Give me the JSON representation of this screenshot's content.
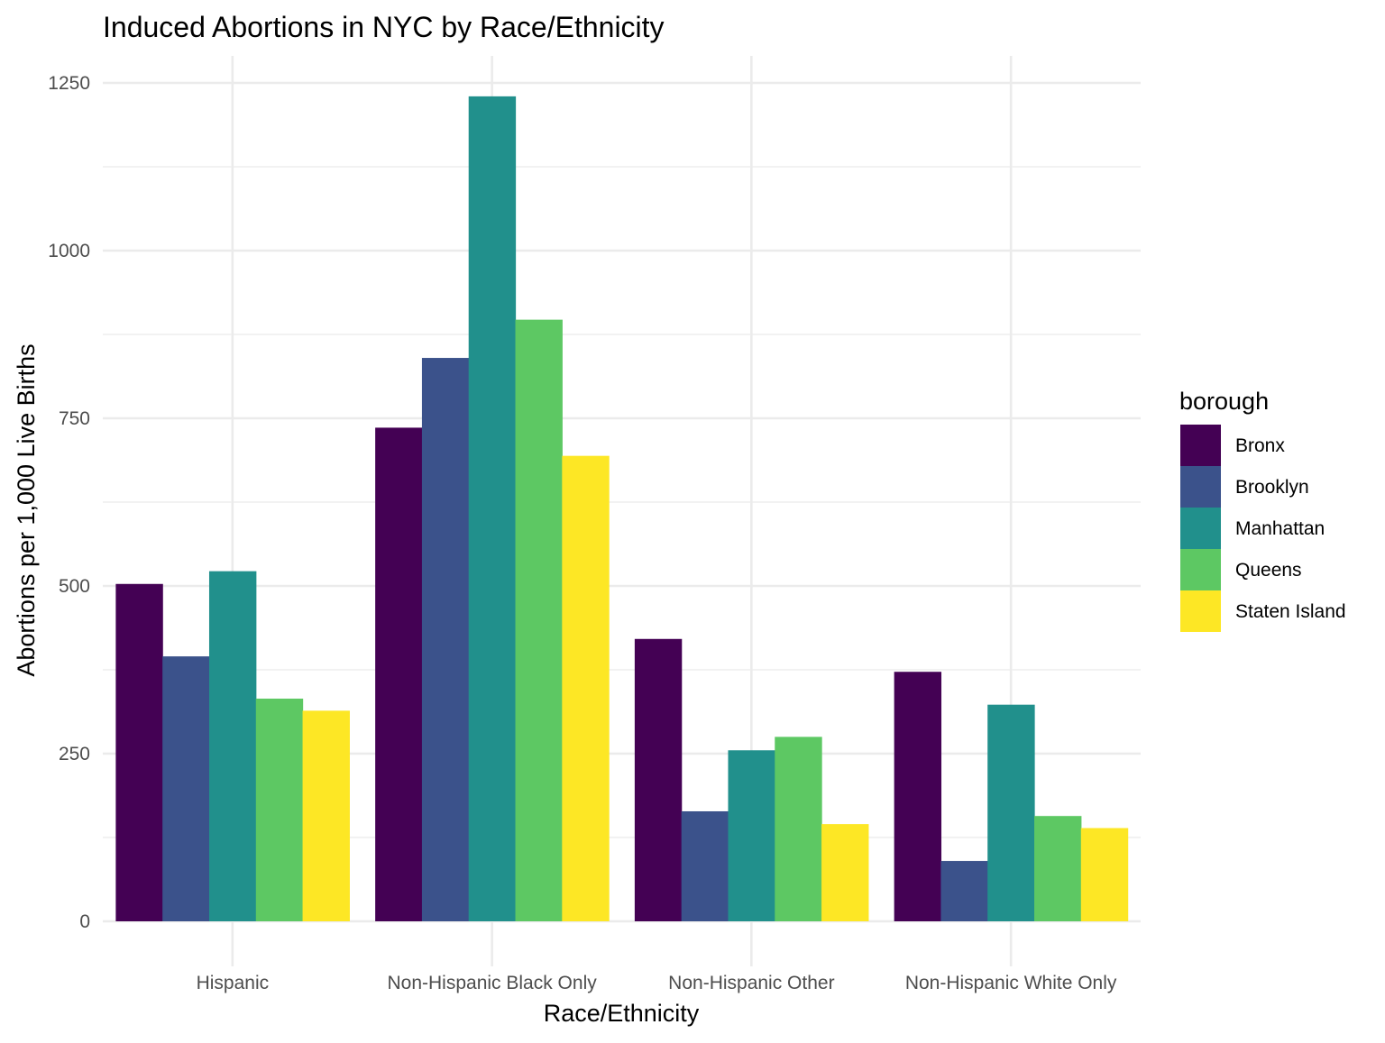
{
  "chart_data": {
    "type": "bar",
    "title": "Induced Abortions in NYC by Race/Ethnicity",
    "xlabel": "Race/Ethnicity",
    "ylabel": "Abortions per 1,000 Live Births",
    "categories": [
      "Hispanic",
      "Non-Hispanic Black Only",
      "Non-Hispanic Other",
      "Non-Hispanic White Only"
    ],
    "ylim": [
      -40,
      1280
    ],
    "yticks": [
      0,
      250,
      500,
      750,
      1000,
      1250
    ],
    "ytick_labels": [
      "0",
      "250",
      "500",
      "750",
      "1000",
      "1250"
    ],
    "grid": true,
    "legend": {
      "title": "borough",
      "position": "right"
    },
    "series": [
      {
        "name": "Bronx",
        "color": "#440154",
        "values": [
          503,
          736,
          421,
          372
        ]
      },
      {
        "name": "Brooklyn",
        "color": "#3b528b",
        "values": [
          395,
          840,
          164,
          90
        ]
      },
      {
        "name": "Manhattan",
        "color": "#21908c",
        "values": [
          522,
          1230,
          255,
          323
        ]
      },
      {
        "name": "Queens",
        "color": "#5dc863",
        "values": [
          332,
          897,
          275,
          157
        ]
      },
      {
        "name": "Staten Island",
        "color": "#fde725",
        "values": [
          314,
          694,
          145,
          139
        ]
      }
    ]
  }
}
